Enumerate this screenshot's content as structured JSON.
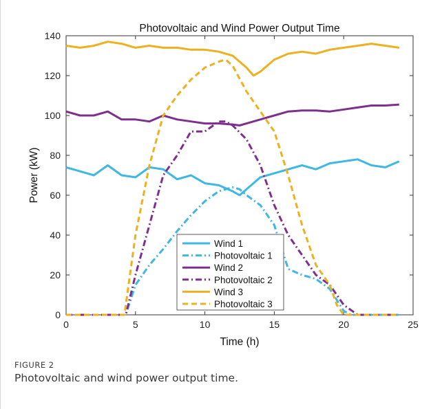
{
  "chart_data": {
    "type": "line",
    "title": "Photovoltaic and Wind Power Output Time",
    "xlabel": "Time (h)",
    "ylabel": "Power (kW)",
    "xlim": [
      0,
      25
    ],
    "ylim": [
      0,
      140
    ],
    "xticks": [
      0,
      5,
      10,
      15,
      20,
      25
    ],
    "yticks": [
      0,
      20,
      40,
      60,
      80,
      100,
      120,
      140
    ],
    "grid": false,
    "legend_position": "bottom-center",
    "series": [
      {
        "name": "Wind 1",
        "color": "#3db7e4",
        "dash": "solid",
        "x": [
          0,
          1,
          2,
          3,
          4,
          5,
          6,
          7,
          8,
          9,
          10,
          11,
          12,
          12.5,
          13,
          14,
          15,
          16,
          17,
          18,
          19,
          20,
          21,
          22,
          23,
          24
        ],
        "y": [
          74,
          72,
          70,
          75,
          70,
          69,
          74,
          73,
          68,
          70,
          66,
          65,
          62,
          60,
          63,
          69,
          71,
          73,
          75,
          73,
          76,
          77,
          78,
          75,
          74,
          77
        ]
      },
      {
        "name": "Photovoltaic 1",
        "color": "#3db7e4",
        "dash": "dashdot",
        "x": [
          0,
          4,
          4.3,
          5,
          6,
          7,
          8,
          9,
          10,
          11,
          12,
          12.5,
          13,
          14,
          15,
          16,
          17,
          18,
          19,
          20,
          20.5,
          21,
          22,
          23,
          24
        ],
        "y": [
          0,
          0,
          0,
          15,
          25,
          33,
          42,
          50,
          57,
          62,
          64,
          63,
          60,
          55,
          45,
          23,
          20,
          18,
          13,
          2,
          0,
          0,
          0,
          0,
          0
        ]
      },
      {
        "name": "Wind 2",
        "color": "#7e2f8e",
        "dash": "solid",
        "x": [
          0,
          1,
          2,
          3,
          4,
          5,
          6,
          7,
          8,
          9,
          10,
          11,
          12,
          12.5,
          13,
          14,
          15,
          16,
          17,
          18,
          19,
          20,
          21,
          22,
          23,
          24
        ],
        "y": [
          102,
          100,
          100,
          102,
          98,
          98,
          97,
          100,
          98,
          97,
          96,
          96,
          95.5,
          95,
          96,
          98,
          100,
          102,
          102.5,
          102.5,
          102,
          103,
          104,
          105,
          105,
          105.5
        ]
      },
      {
        "name": "Photovoltaic 2",
        "color": "#7e2f8e",
        "dash": "dashdot",
        "x": [
          0,
          4,
          4.3,
          5,
          6,
          7,
          8,
          9,
          10,
          11,
          11.5,
          12,
          13,
          14,
          15,
          16,
          17,
          18,
          19,
          20,
          21,
          22,
          23,
          24
        ],
        "y": [
          0,
          0,
          0,
          20,
          45,
          70,
          80,
          92,
          92,
          97,
          97,
          95,
          88,
          75,
          55,
          40,
          30,
          20,
          15,
          5,
          0,
          0,
          0,
          0
        ]
      },
      {
        "name": "Wind 3",
        "color": "#edb120",
        "dash": "solid",
        "x": [
          0,
          1,
          2,
          3,
          4,
          5,
          6,
          7,
          8,
          9,
          10,
          11,
          12,
          13,
          13.5,
          14,
          15,
          16,
          17,
          18,
          19,
          20,
          21,
          22,
          23,
          24
        ],
        "y": [
          135,
          134,
          135,
          137,
          136,
          134,
          135,
          134,
          134,
          133,
          133,
          132,
          130,
          124,
          120,
          122,
          128,
          131,
          132,
          131,
          133,
          134,
          135,
          136,
          135,
          134
        ]
      },
      {
        "name": "Photovoltaic 3",
        "color": "#edb120",
        "dash": "dashed",
        "x": [
          0,
          4,
          4.2,
          5,
          6,
          7,
          8,
          9,
          10,
          11,
          11.5,
          12,
          13,
          14,
          15,
          16,
          17,
          18,
          19,
          19.5,
          20,
          21,
          22,
          23,
          24
        ],
        "y": [
          0,
          0,
          0,
          40,
          75,
          100,
          110,
          118,
          124,
          127,
          128,
          125,
          112,
          102,
          92,
          70,
          45,
          25,
          15,
          5,
          0,
          0,
          0,
          0,
          0
        ]
      }
    ]
  },
  "caption": {
    "label": "FIGURE 2",
    "text": "Photovoltaic and wind power output time."
  }
}
